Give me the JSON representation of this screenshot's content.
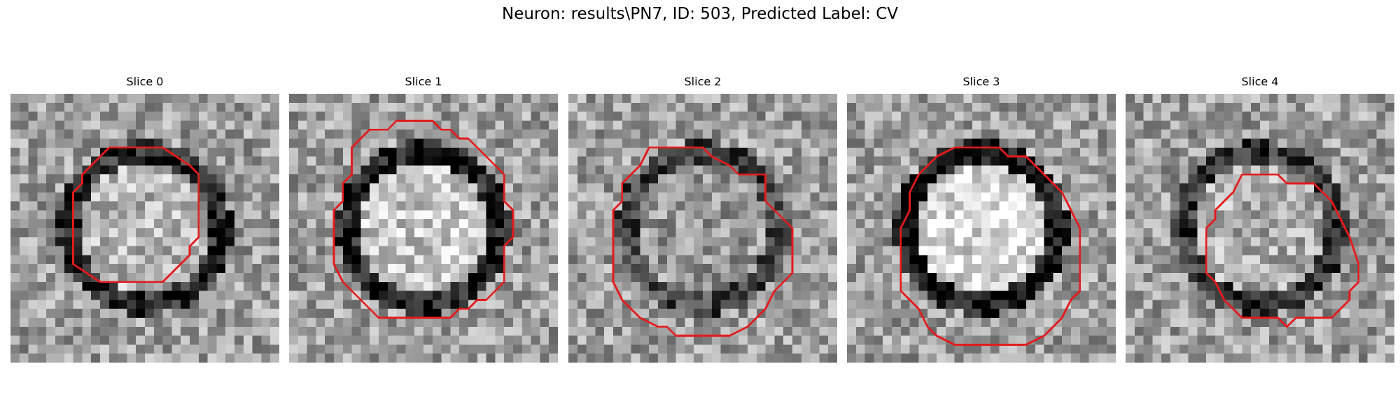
{
  "figure": {
    "title": "Neuron: results\\PN7, ID: 503, Predicted Label: CV"
  },
  "contour_color": "#e41a1c",
  "panels": [
    {
      "title": "Slice 0",
      "seed": 11,
      "center": [
        0.2,
        0.82
      ],
      "ring_dark": 0.55,
      "inner_mean": 0.72
    },
    {
      "title": "Slice 1",
      "seed": 23,
      "center": [
        0.17,
        0.92
      ],
      "ring_dark": 0.6,
      "inner_mean": 0.78
    },
    {
      "title": "Slice 2",
      "seed": 37,
      "center": [
        0.15,
        0.75
      ],
      "ring_dark": 0.45,
      "inner_mean": 0.6
    },
    {
      "title": "Slice 3",
      "seed": 41,
      "center": [
        0.22,
        0.95
      ],
      "ring_dark": 0.65,
      "inner_mean": 0.85
    },
    {
      "title": "Slice 4",
      "seed": 53,
      "center": [
        0.18,
        0.7
      ],
      "ring_dark": 0.5,
      "inner_mean": 0.68
    }
  ]
}
